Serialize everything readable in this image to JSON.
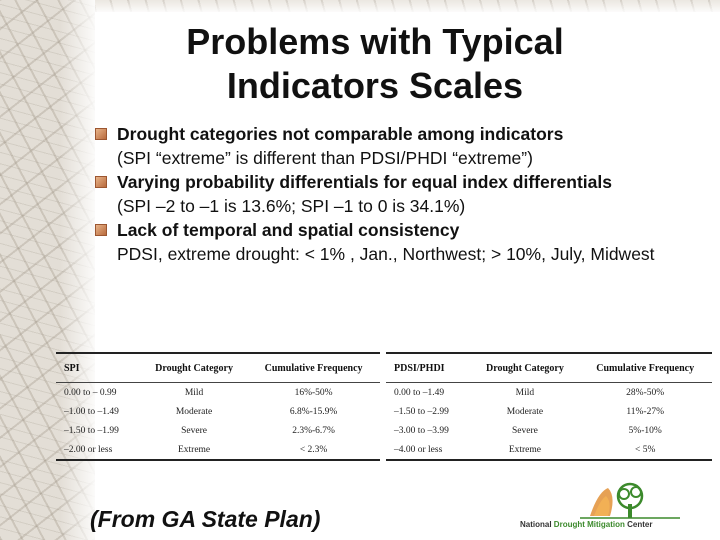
{
  "title_line1": "Problems with Typical",
  "title_line2": "Indicators Scales",
  "bullets": [
    {
      "text": "Drought categories not comparable among indicators",
      "sub": "(SPI “extreme” is different than PDSI/PHDI  “extreme”)"
    },
    {
      "text": "Varying probability differentials for equal index differentials",
      "sub": "(SPI  –2 to –1 is 13.6%; SPI –1 to 0 is 34.1%)"
    },
    {
      "text": "Lack of temporal and spatial consistency",
      "sub": "PDSI, extreme drought:  < 1% , Jan., Northwest;  > 10%, July, Midwest"
    }
  ],
  "table_spi": {
    "headers": [
      "SPI",
      "Drought Category",
      "Cumulative Frequency"
    ],
    "rows": [
      [
        "0.00  to  – 0.99",
        "Mild",
        "16%-50%"
      ],
      [
        "–1.00 to  –1.49",
        "Moderate",
        "6.8%-15.9%"
      ],
      [
        "–1.50 to  –1.99",
        "Severe",
        "2.3%-6.7%"
      ],
      [
        "–2.00 or less",
        "Extreme",
        "< 2.3%"
      ]
    ]
  },
  "table_pdsi": {
    "headers": [
      "PDSI/PHDI",
      "Drought Category",
      "Cumulative Frequency"
    ],
    "rows": [
      [
        "0.00 to –1.49",
        "Mild",
        "28%-50%"
      ],
      [
        "–1.50 to –2.99",
        "Moderate",
        "11%-27%"
      ],
      [
        "–3.00 to –3.99",
        "Severe",
        "5%-10%"
      ],
      [
        "–4.00 or less",
        "Extreme",
        "< 5%"
      ]
    ]
  },
  "source": "(From GA State Plan)",
  "logo": {
    "part1": "National",
    "part2": "Drought Mitigation",
    "part3": "Center"
  },
  "colors": {
    "bullet": "#c7804f",
    "logo_green": "#3c8a2c",
    "logo_orange": "#e08a2a"
  }
}
